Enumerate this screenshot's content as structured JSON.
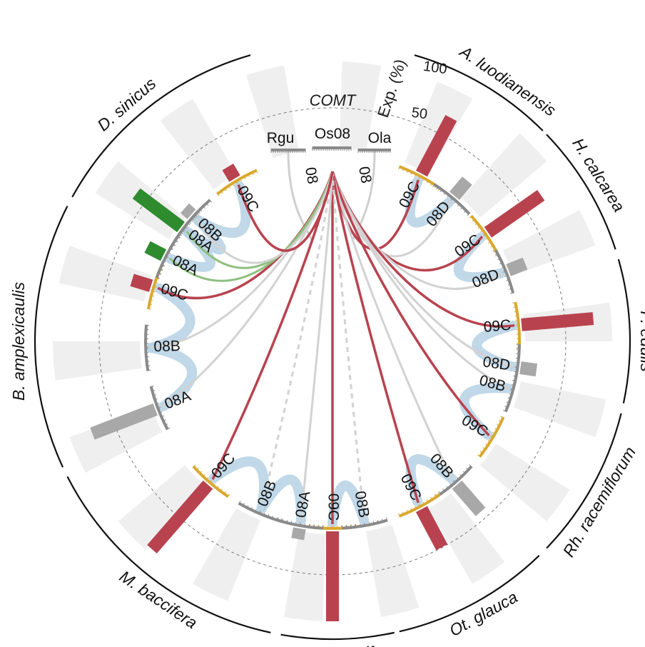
{
  "title": "COMT",
  "axis": {
    "label": "Exp. (%)",
    "ticks": [
      "100",
      "50"
    ]
  },
  "colors": {
    "red": "#b8434f",
    "grey": "#a8a8a8",
    "green": "#2e8b2e",
    "blue": "#b9d4e6",
    "gold": "#d9a82e",
    "band": "#efefef"
  },
  "reference": [
    {
      "name": "Rgu",
      "link": "08"
    },
    {
      "name": "Os08"
    },
    {
      "name": "Ola",
      "link": "08"
    }
  ],
  "species": [
    {
      "name": "A. luodianensis",
      "genes": [
        {
          "name": "09C",
          "exp": 70,
          "type": "red"
        },
        {
          "name": "08D",
          "exp": 22,
          "type": "grey"
        }
      ]
    },
    {
      "name": "H. calcarea",
      "genes": [
        {
          "name": "09C",
          "exp": 72,
          "type": "red"
        },
        {
          "name": "08D",
          "exp": 20,
          "type": "grey"
        }
      ]
    },
    {
      "name": "P. edulis",
      "genes": [
        {
          "name": "09C",
          "exp": 80,
          "type": "red"
        },
        {
          "name": "08D",
          "exp": 18,
          "type": "grey"
        }
      ]
    },
    {
      "name": "Rh. racemiflorum",
      "genes": [
        {
          "name": "08B",
          "exp": 0,
          "type": "grey"
        },
        {
          "name": "09C",
          "exp": 0,
          "type": "red"
        }
      ]
    },
    {
      "name": "Ot. glauca",
      "genes": [
        {
          "name": "08B",
          "exp": 40,
          "type": "grey"
        },
        {
          "name": "09C",
          "exp": 48,
          "type": "red"
        }
      ]
    },
    {
      "name": "G. angustifo",
      "genes": [
        {
          "name": "09C",
          "exp": 100,
          "type": "red"
        },
        {
          "name": "08B",
          "exp": 0,
          "type": "grey"
        }
      ]
    },
    {
      "name": "M. baccifera",
      "genes": [
        {
          "name": "08A",
          "exp": 12,
          "type": "grey"
        },
        {
          "name": "08B",
          "exp": 0,
          "type": "grey"
        },
        {
          "name": "09C",
          "exp": 95,
          "type": "red"
        }
      ]
    },
    {
      "name": "B. amplexicaulis",
      "genes": [
        {
          "name": "08A",
          "exp": 75,
          "type": "grey"
        },
        {
          "name": "08B",
          "exp": 0,
          "type": "grey"
        },
        {
          "name": "09C",
          "exp": 22,
          "type": "red"
        }
      ]
    },
    {
      "name": "D. sinicus",
      "genes": [
        {
          "name": "08A",
          "exp": 20,
          "type": "green"
        },
        {
          "name": "08A",
          "exp": 62,
          "type": "green"
        },
        {
          "name": "08B",
          "exp": 10,
          "type": "grey"
        },
        {
          "name": "09C",
          "exp": 15,
          "type": "red"
        }
      ]
    }
  ]
}
